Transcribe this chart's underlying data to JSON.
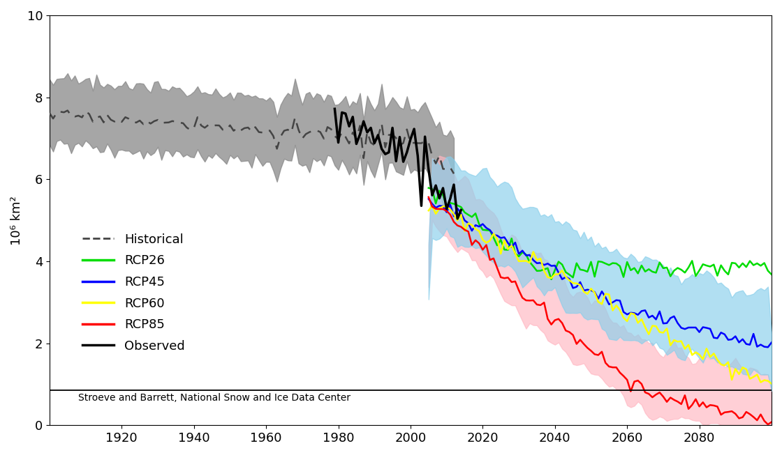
{
  "ylabel": "10⁶ km²",
  "xlim": [
    1900,
    2100
  ],
  "ylim": [
    0,
    10
  ],
  "yticks": [
    0,
    2,
    4,
    6,
    8,
    10
  ],
  "xticks": [
    1920,
    1940,
    1960,
    1980,
    2000,
    2020,
    2040,
    2060,
    2080
  ],
  "source_text": "Stroeve and Barrett, National Snow and Ice Data Center",
  "source_line_y": 0.85,
  "colors": {
    "historical_line": "#444444",
    "historical_shade": "#888888",
    "rcp26_line": "#00dd00",
    "rcp45_line": "#0000ff",
    "rcp45_shade": "#87ceeb",
    "rcp60_line": "#ffff00",
    "rcp85_line": "#ff0000",
    "rcp85_shade": "#ffb6c1",
    "observed_line": "#000000"
  },
  "seed": 17
}
